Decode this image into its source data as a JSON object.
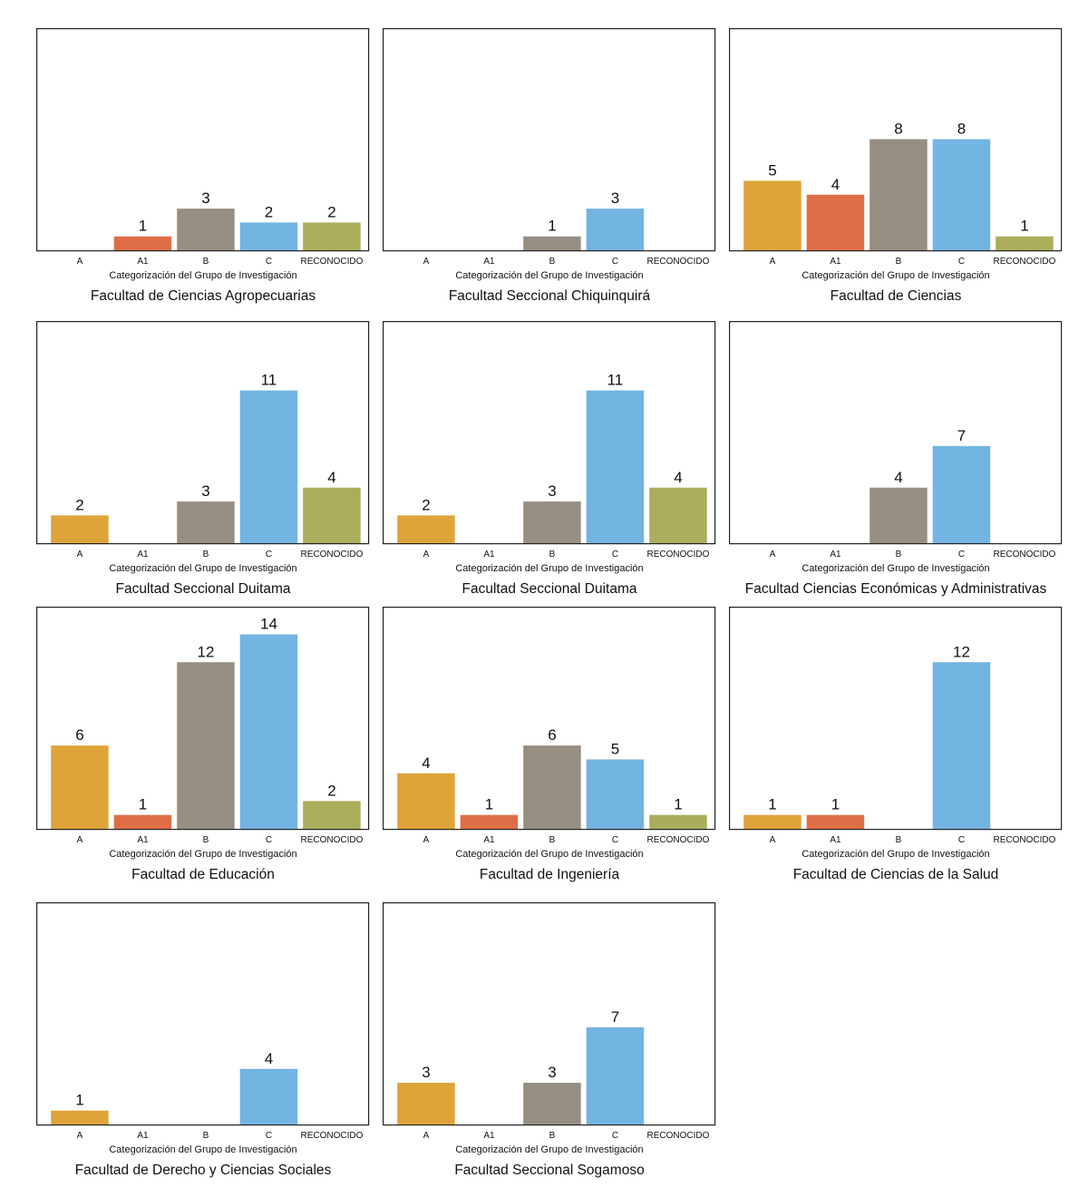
{
  "colors": {
    "A": "#DEA43A",
    "A1": "#DF6D47",
    "B": "#978E82",
    "C": "#72B4E2",
    "RECONOCIDO": "#AAAE5C"
  },
  "chart_data": [
    {
      "type": "bar",
      "title": "Facultad de Ciencias Agropecuarias",
      "xlabel": "Categorización del Grupo de Investigación",
      "ylabel": "",
      "ylim": [
        0,
        16
      ],
      "categories": [
        "A",
        "A1",
        "B",
        "C",
        "RECONOCIDO"
      ],
      "values": [
        null,
        1,
        3,
        2,
        2
      ]
    },
    {
      "type": "bar",
      "title": "Facultad Seccional Chiquinquirá",
      "xlabel": "Categorización del Grupo de Investigación",
      "ylabel": "",
      "ylim": [
        0,
        16
      ],
      "categories": [
        "A",
        "A1",
        "B",
        "C",
        "RECONOCIDO"
      ],
      "values": [
        null,
        null,
        1,
        3,
        null
      ]
    },
    {
      "type": "bar",
      "title": "Facultad de Ciencias",
      "xlabel": "Categorización del Grupo de Investigación",
      "ylabel": "",
      "ylim": [
        0,
        16
      ],
      "categories": [
        "A",
        "A1",
        "B",
        "C",
        "RECONOCIDO"
      ],
      "values": [
        5,
        4,
        8,
        8,
        1
      ]
    },
    {
      "type": "bar",
      "title": "Facultad Seccional Duitama",
      "xlabel": "Categorización del Grupo de Investigación",
      "ylabel": "",
      "ylim": [
        0,
        16
      ],
      "categories": [
        "A",
        "A1",
        "B",
        "C",
        "RECONOCIDO"
      ],
      "values": [
        2,
        null,
        3,
        11,
        4
      ]
    },
    {
      "type": "bar",
      "title": "Facultad Seccional Duitama",
      "xlabel": "Categorización del Grupo de Investigación",
      "ylabel": "",
      "ylim": [
        0,
        16
      ],
      "categories": [
        "A",
        "A1",
        "B",
        "C",
        "RECONOCIDO"
      ],
      "values": [
        2,
        null,
        3,
        11,
        4
      ]
    },
    {
      "type": "bar",
      "title": "Facultad Ciencias Económicas y Administrativas",
      "xlabel": "Categorización del Grupo de Investigación",
      "ylabel": "",
      "ylim": [
        0,
        16
      ],
      "categories": [
        "A",
        "A1",
        "B",
        "C",
        "RECONOCIDO"
      ],
      "values": [
        null,
        null,
        4,
        7,
        null
      ]
    },
    {
      "type": "bar",
      "title": "Facultad de Educación",
      "xlabel": "Categorización del Grupo de Investigación",
      "ylabel": "",
      "ylim": [
        0,
        16
      ],
      "categories": [
        "A",
        "A1",
        "B",
        "C",
        "RECONOCIDO"
      ],
      "values": [
        6,
        1,
        12,
        14,
        2
      ]
    },
    {
      "type": "bar",
      "title": "Facultad de Ingeniería",
      "xlabel": "Categorización del Grupo de Investigación",
      "ylabel": "",
      "ylim": [
        0,
        16
      ],
      "categories": [
        "A",
        "A1",
        "B",
        "C",
        "RECONOCIDO"
      ],
      "values": [
        4,
        1,
        6,
        5,
        1
      ]
    },
    {
      "type": "bar",
      "title": "Facultad de Ciencias de la Salud",
      "xlabel": "Categorización del Grupo de Investigación",
      "ylabel": "",
      "ylim": [
        0,
        16
      ],
      "categories": [
        "A",
        "A1",
        "B",
        "C",
        "RECONOCIDO"
      ],
      "values": [
        1,
        1,
        null,
        12,
        null
      ]
    },
    {
      "type": "bar",
      "title": "Facultad de Derecho y Ciencias Sociales",
      "xlabel": "Categorización del Grupo de Investigación",
      "ylabel": "",
      "ylim": [
        0,
        16
      ],
      "categories": [
        "A",
        "A1",
        "B",
        "C",
        "RECONOCIDO"
      ],
      "values": [
        1,
        null,
        null,
        4,
        null
      ]
    },
    {
      "type": "bar",
      "title": "Facultad Seccional Sogamoso",
      "xlabel": "Categorización del Grupo de Investigación",
      "ylabel": "",
      "ylim": [
        0,
        16
      ],
      "categories": [
        "A",
        "A1",
        "B",
        "C",
        "RECONOCIDO"
      ],
      "values": [
        3,
        null,
        3,
        7,
        null
      ]
    }
  ]
}
